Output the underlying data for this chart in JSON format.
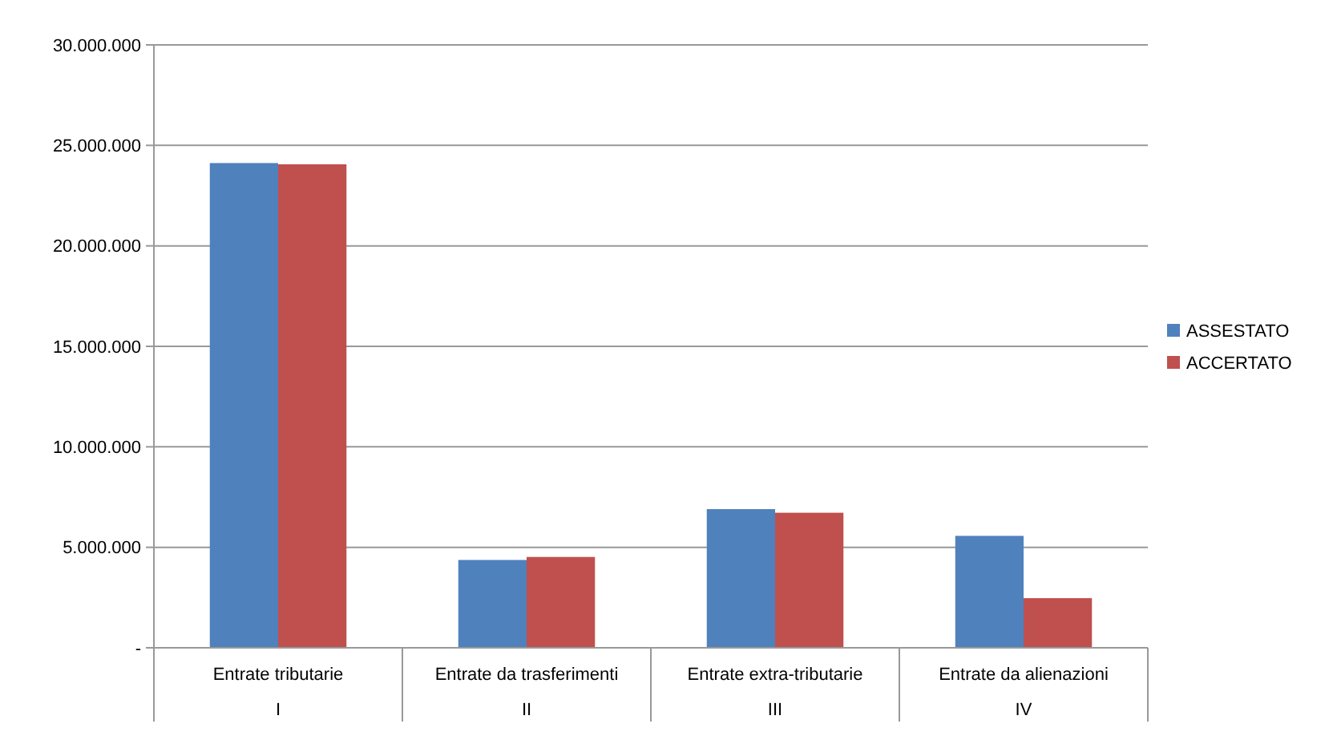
{
  "chart_data": {
    "type": "bar",
    "categories": [
      "Entrate tributarie\nI",
      "Entrate da trasferimenti\nII",
      "Entrate extra-tributarie\nIII",
      "Entrate da alienazioni\nIV"
    ],
    "series": [
      {
        "name": "ASSESTATO",
        "color": "#4f81bd",
        "values": [
          24120000,
          4370000,
          6900000,
          5570000
        ]
      },
      {
        "name": "ACCERTATO",
        "color": "#c0504d",
        "values": [
          24060000,
          4520000,
          6720000,
          2470000
        ]
      }
    ],
    "ylim": [
      0,
      30000000
    ],
    "yticks": [
      {
        "value": 0,
        "label": "-"
      },
      {
        "value": 5000000,
        "label": "5.000.000"
      },
      {
        "value": 10000000,
        "label": "10.000.000"
      },
      {
        "value": 15000000,
        "label": "15.000.000"
      },
      {
        "value": 20000000,
        "label": "20.000.000"
      },
      {
        "value": 25000000,
        "label": "25.000.000"
      },
      {
        "value": 30000000,
        "label": "30.000.000"
      }
    ],
    "grid": "y",
    "legend": "right"
  }
}
